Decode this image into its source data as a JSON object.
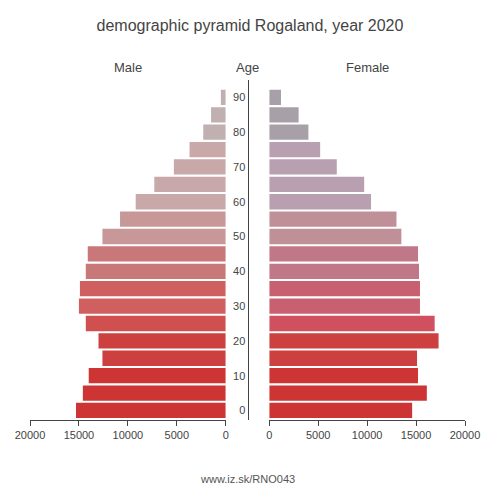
{
  "chart_data": {
    "type": "bar",
    "orientation": "horizontal",
    "title": "demographic pyramid Rogaland, year 2020",
    "ylabel": "Age",
    "y": [
      90,
      85,
      80,
      75,
      70,
      65,
      60,
      55,
      50,
      45,
      40,
      35,
      30,
      25,
      20,
      15,
      10,
      5,
      0
    ],
    "series": [
      {
        "name": "Male",
        "values": [
          500,
          1500,
          2300,
          3700,
          5300,
          7300,
          9200,
          10800,
          12600,
          14100,
          14300,
          14900,
          15000,
          14300,
          13000,
          12600,
          14000,
          14600,
          15300
        ],
        "colors": [
          "#c0b0b0",
          "#c0b0b0",
          "#c0b0b0",
          "#c8a8a8",
          "#c8a8a8",
          "#c8a8a8",
          "#c8a8a8",
          "#c89898",
          "#c89898",
          "#c87878",
          "#c87878",
          "#d06060",
          "#d06060",
          "#d05050",
          "#cd4040",
          "#cd4040",
          "#cd3535",
          "#cd3535",
          "#cd3535"
        ]
      },
      {
        "name": "Female",
        "values": [
          1200,
          3000,
          4000,
          5200,
          6900,
          9700,
          10400,
          13000,
          13500,
          15200,
          15300,
          15400,
          15400,
          16900,
          17300,
          15100,
          15200,
          16100,
          14600
        ],
        "colors": [
          "#a8a0a8",
          "#a8a0a8",
          "#a8a0a8",
          "#b8a0b0",
          "#b8a0b0",
          "#b8a0b0",
          "#b8a0b0",
          "#c09098",
          "#c09098",
          "#c07888",
          "#c07888",
          "#c86070",
          "#c86070",
          "#d05060",
          "#cd4040",
          "#cd4040",
          "#cd3535",
          "#cd3535",
          "#cd3535"
        ]
      }
    ],
    "xlim": [
      0,
      20000
    ],
    "xticks": [
      0,
      5000,
      10000,
      15000,
      20000
    ],
    "ylim": [
      -2.75,
      95
    ],
    "yticks": [
      0,
      10,
      20,
      30,
      40,
      50,
      60,
      70,
      80,
      90
    ],
    "grid": false,
    "annotations": [
      {
        "text": "www.iz.sk/RNO043"
      }
    ]
  }
}
